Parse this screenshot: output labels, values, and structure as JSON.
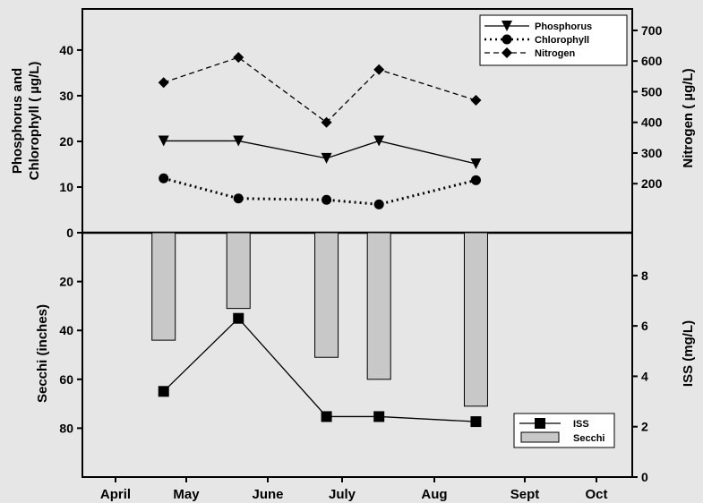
{
  "chart_data": [
    {
      "type": "line",
      "panel": "top",
      "categories": [
        "April",
        "May",
        "June",
        "July",
        "Aug",
        "Sept",
        "Oct"
      ],
      "ylabel_lines": [
        "Phosphorus and",
        "Chlorophyll ( µg/L)"
      ],
      "y2label": "Nitrogen ( µg/L)",
      "ylim": [
        0,
        49
      ],
      "y2lim": [
        40,
        770
      ],
      "yticks": [
        0,
        10,
        20,
        30,
        40
      ],
      "y2ticks": [
        200,
        300,
        400,
        500,
        600,
        700
      ],
      "legend_position": "top-right",
      "series": [
        {
          "name": "Phosphorus",
          "axis": "left",
          "marker": "triangle-down",
          "dash": "solid",
          "x": [
            1.68,
            2.64,
            3.79,
            4.4,
            5.46
          ],
          "values": [
            20.1,
            20.1,
            16.3,
            20.1,
            15.1
          ],
          "color": "#000000"
        },
        {
          "name": "Chlorophyll",
          "axis": "left",
          "marker": "circle",
          "dash": "dotted",
          "x": [
            1.68,
            2.64,
            3.79,
            4.4,
            5.46
          ],
          "values": [
            11.9,
            7.5,
            7.2,
            6.2,
            11.5
          ],
          "color": "#000000"
        },
        {
          "name": "Nitrogen",
          "axis": "right",
          "marker": "diamond",
          "dash": "dashed",
          "x": [
            1.68,
            2.64,
            3.79,
            4.4,
            5.46
          ],
          "values": [
            530,
            612,
            400,
            572,
            472
          ],
          "color": "#000000"
        }
      ]
    },
    {
      "type": "bar",
      "panel": "bottom",
      "categories": [
        "April",
        "May",
        "June",
        "July",
        "Aug",
        "Sept",
        "Oct"
      ],
      "ylabel": "Secchi (inches)",
      "y2label": "ISS (mg/L)",
      "ylim": [
        0,
        100
      ],
      "ylim_inverted": true,
      "y2lim": [
        0,
        9.7
      ],
      "yticks": [
        0,
        20,
        40,
        60,
        80
      ],
      "y2ticks": [
        0,
        2,
        4,
        6,
        8
      ],
      "legend_position": "bottom-right",
      "series": [
        {
          "name": "Secchi",
          "type": "bar",
          "axis": "left",
          "x": [
            1.68,
            2.64,
            3.79,
            4.4,
            5.46
          ],
          "values": [
            44,
            31,
            51,
            60,
            71
          ],
          "color": "#c8c8c8"
        },
        {
          "name": "ISS",
          "type": "line",
          "axis": "right",
          "marker": "square",
          "x": [
            1.68,
            2.64,
            3.79,
            4.4,
            5.46
          ],
          "values": [
            3.4,
            6.3,
            2.4,
            2.4,
            2.2
          ],
          "color": "#000000"
        }
      ]
    }
  ]
}
